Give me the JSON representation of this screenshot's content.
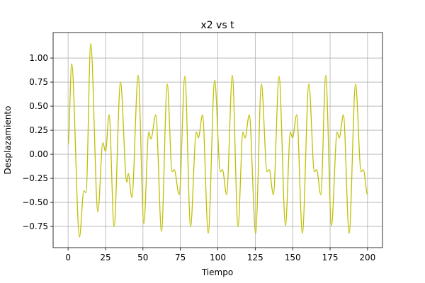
{
  "chart_data": {
    "type": "line",
    "title": "x2 vs t",
    "x_label": "Tiempo",
    "y_label": "Desplazamiento",
    "xlim": [
      -10,
      210
    ],
    "ylim": [
      -0.97,
      1.265
    ],
    "xticks": [
      0,
      25,
      50,
      75,
      100,
      125,
      150,
      175,
      200
    ],
    "yticks": [
      {
        "value": -0.75,
        "label": "−0.75"
      },
      {
        "value": -0.5,
        "label": "−0.50"
      },
      {
        "value": -0.25,
        "label": "−0.25"
      },
      {
        "value": 0,
        "label": "0.00"
      },
      {
        "value": 0.25,
        "label": "0.25"
      },
      {
        "value": 0.5,
        "label": "0.50"
      },
      {
        "value": 0.75,
        "label": "0.75"
      },
      {
        "value": 1,
        "label": "1.00"
      }
    ],
    "grid": true,
    "series": [
      {
        "name": "x2",
        "color": "#bfbf00",
        "x": [
          0,
          2.4,
          7.6,
          10.5,
          12,
          15.1,
          19.9,
          23.2,
          25,
          27.4,
          30.7,
          35,
          39.2,
          40.2,
          42.6,
          46.8,
          50.6,
          53.9,
          55.3,
          58.6,
          62.4,
          66.2,
          69.5,
          70.9,
          74.2,
          78,
          81.8,
          85.6,
          87,
          89.8,
          93.6,
          97.9,
          101.7,
          103.1,
          105.9,
          109.7,
          113.5,
          116.8,
          118.2,
          121,
          125.3,
          129.1,
          132.9,
          134.3,
          137.1,
          140.9,
          145.2,
          148.5,
          149.9,
          152.7,
          156.5,
          160.8,
          164.5,
          166,
          168.8,
          172.1,
          175.9,
          179.7,
          181.1,
          183.9,
          187.7,
          192,
          195.7,
          197.2,
          200
        ],
        "values": [
          0.1,
          0.94,
          -0.86,
          -0.38,
          -0.4,
          1.15,
          -0.6,
          0.12,
          0.03,
          0.41,
          -0.75,
          0.75,
          -0.29,
          -0.2,
          -0.45,
          0.82,
          -0.72,
          0.23,
          0.16,
          0.41,
          -0.8,
          0.73,
          -0.18,
          -0.16,
          -0.42,
          0.81,
          -0.75,
          0.23,
          0.17,
          0.41,
          -0.82,
          0.77,
          -0.18,
          -0.16,
          -0.42,
          0.82,
          -0.75,
          0.23,
          0.17,
          0.41,
          -0.82,
          0.73,
          -0.18,
          -0.16,
          -0.42,
          0.81,
          -0.74,
          0.23,
          0.17,
          0.41,
          -0.82,
          0.73,
          -0.18,
          -0.16,
          -0.42,
          0.82,
          -0.74,
          0.23,
          0.17,
          0.41,
          -0.82,
          0.73,
          -0.18,
          -0.16,
          -0.42
        ]
      }
    ]
  }
}
